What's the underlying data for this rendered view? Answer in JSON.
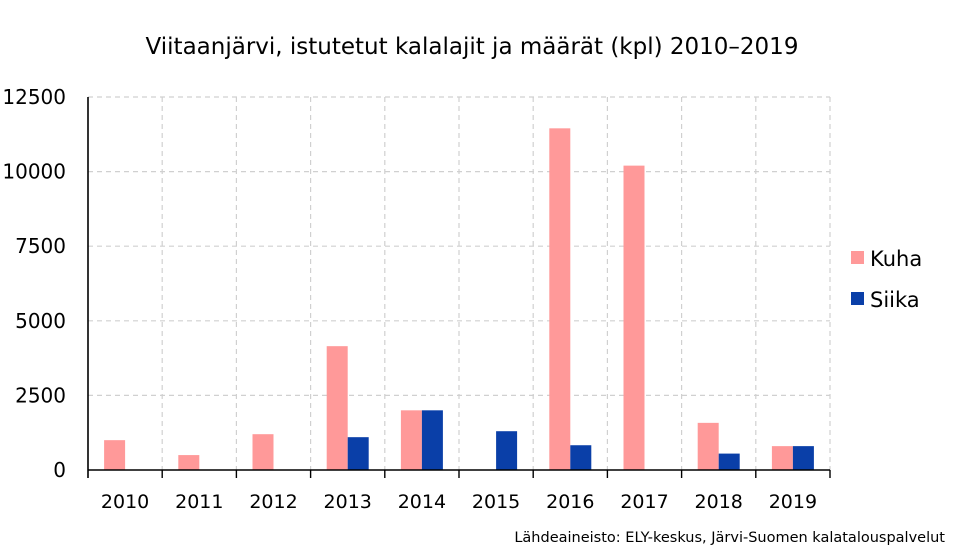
{
  "chart_data": {
    "type": "bar",
    "title": "Viitaanjärvi, istutetut kalalajit ja määrät (kpl) 2010–2019",
    "xlabel": "",
    "ylabel": "",
    "categories": [
      "2010",
      "2011",
      "2012",
      "2013",
      "2014",
      "2015",
      "2016",
      "2017",
      "2018",
      "2019"
    ],
    "series": [
      {
        "name": "Kuha",
        "color": "#ff9999",
        "values": [
          1000,
          500,
          1200,
          4150,
          2000,
          0,
          11450,
          10200,
          1580,
          800
        ]
      },
      {
        "name": "Siika",
        "color": "#0a3fa8",
        "values": [
          0,
          0,
          0,
          1100,
          2000,
          1300,
          830,
          0,
          550,
          800
        ]
      }
    ],
    "ylim": [
      0,
      12500
    ],
    "yticks": [
      0,
      2500,
      5000,
      7500,
      10000,
      12500
    ],
    "grid": true,
    "legend_position": "right",
    "source": "Lähdeaineisto: ELY-keskus, Järvi-Suomen kalatalouspalvelut"
  }
}
